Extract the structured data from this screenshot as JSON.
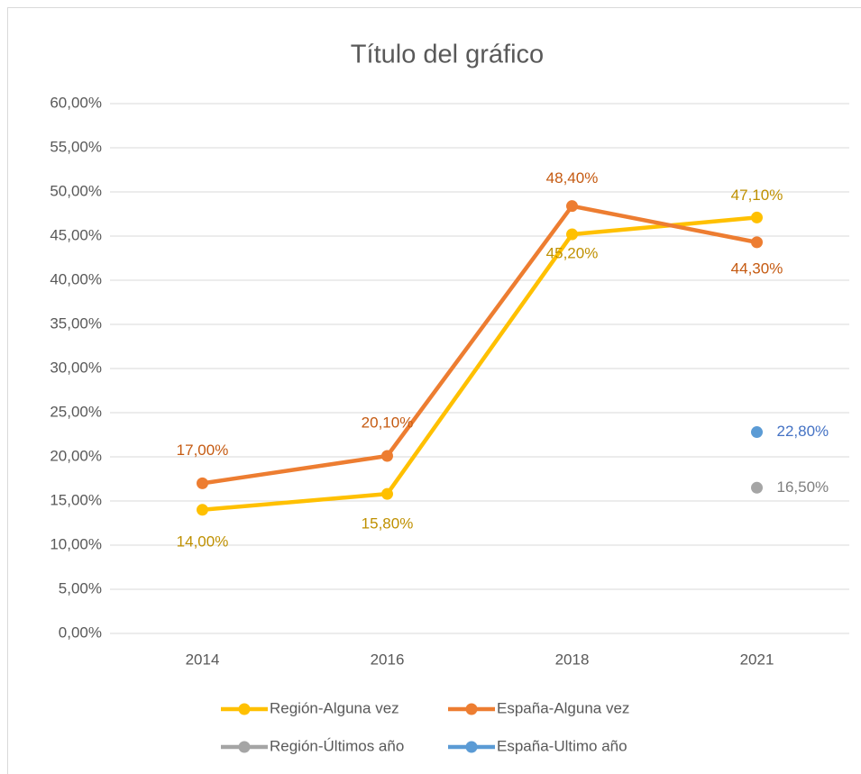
{
  "chart_data": {
    "type": "line",
    "title": "Título del gráfico",
    "categories": [
      "2014",
      "2016",
      "2018",
      "2021"
    ],
    "series": [
      {
        "name": "Región-Alguna vez",
        "color": "#FFC000",
        "values": [
          14,
          15.8,
          45.2,
          47.1
        ],
        "value_labels": [
          "14,00%",
          "15,80%",
          "45,20%",
          "47,10%"
        ]
      },
      {
        "name": "España-Alguna vez",
        "color": "#ED7D31",
        "values": [
          17,
          20.1,
          48.4,
          44.3
        ],
        "value_labels": [
          "17,00%",
          "20,10%",
          "48,40%",
          "44,30%"
        ]
      },
      {
        "name": "Región-Últimos año",
        "color": "#A5A5A5",
        "values": [
          null,
          null,
          null,
          16.5
        ],
        "value_labels": [
          null,
          null,
          null,
          "16,50%"
        ]
      },
      {
        "name": "España-Ultimo año",
        "color": "#5B9BD5",
        "values": [
          null,
          null,
          null,
          22.8
        ],
        "value_labels": [
          null,
          null,
          null,
          "22,80%"
        ]
      }
    ],
    "ylim": [
      0,
      60
    ],
    "yticks": [
      {
        "value": 0,
        "label": "0,00%"
      },
      {
        "value": 5,
        "label": "5,00%"
      },
      {
        "value": 10,
        "label": "10,00%"
      },
      {
        "value": 15,
        "label": "15,00%"
      },
      {
        "value": 20,
        "label": "20,00%"
      },
      {
        "value": 25,
        "label": "25,00%"
      },
      {
        "value": 30,
        "label": "30,00%"
      },
      {
        "value": 35,
        "label": "35,00%"
      },
      {
        "value": 40,
        "label": "40,00%"
      },
      {
        "value": 45,
        "label": "45,00%"
      },
      {
        "value": 50,
        "label": "50,00%"
      },
      {
        "value": 55,
        "label": "55,00%"
      },
      {
        "value": 60,
        "label": "60,00%"
      }
    ],
    "grid": true,
    "legend": "bottom"
  }
}
